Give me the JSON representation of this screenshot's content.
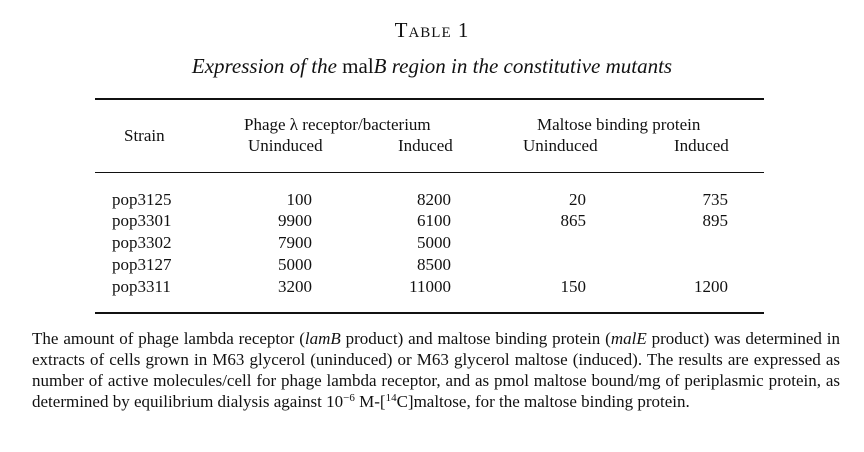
{
  "table": {
    "label": "Table 1",
    "caption_part1": "Expression of the ",
    "caption_gene": "mal",
    "caption_gene_upright": "B",
    "caption_part2": " region in the constitutive mutants"
  },
  "headers": {
    "strain": "Strain",
    "group1": "Phage λ receptor/bacterium",
    "group2": "Maltose binding protein",
    "uninduced": "Uninduced",
    "induced": "Induced"
  },
  "rows": [
    {
      "strain": "pop3125",
      "phage_uninduced": "100",
      "phage_induced": "8200",
      "mbp_uninduced": "20",
      "mbp_induced": "735"
    },
    {
      "strain": "pop3301",
      "phage_uninduced": "9900",
      "phage_induced": "6100",
      "mbp_uninduced": "865",
      "mbp_induced": "895"
    },
    {
      "strain": "pop3302",
      "phage_uninduced": "7900",
      "phage_induced": "5000",
      "mbp_uninduced": "",
      "mbp_induced": ""
    },
    {
      "strain": "pop3127",
      "phage_uninduced": "5000",
      "phage_induced": "8500",
      "mbp_uninduced": "",
      "mbp_induced": ""
    },
    {
      "strain": "pop3311",
      "phage_uninduced": "3200",
      "phage_induced": "11000",
      "mbp_uninduced": "150",
      "mbp_induced": "1200"
    }
  ],
  "footnote": {
    "t1": "The amount of phage lambda receptor (",
    "lamb": "lamB",
    "t2": " product) and maltose binding protein (",
    "male": "malE",
    "t3": " product) was determined in extracts of cells grown in M63 glycerol (uninduced) or M63 glycerol maltose (induced). The results are expressed as number of active molecules/cell for phage lambda receptor, and as pmol maltose bound/mg of periplasmic protein, as determined by equilibrium dialysis against 10",
    "exp": "−6",
    "t4": " M-[",
    "iso": "14",
    "t5": "C]maltose, for the maltose binding protein."
  }
}
